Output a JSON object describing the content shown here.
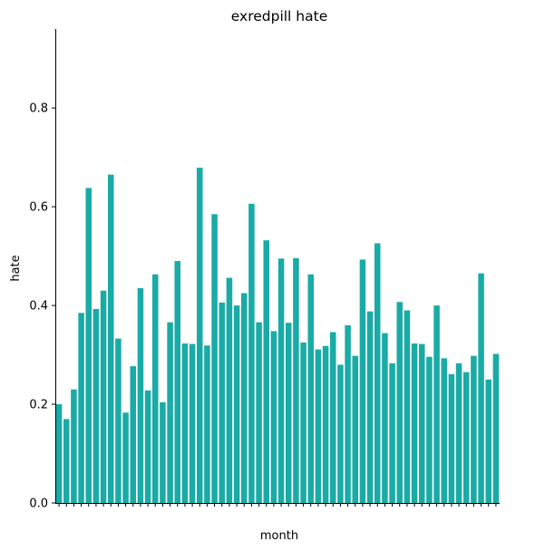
{
  "chart_data": {
    "type": "bar",
    "title": "exredpill hate",
    "xlabel": "month",
    "ylabel": "hate",
    "ylim": [
      0,
      0.96
    ],
    "yticks": [
      0.0,
      0.2,
      0.4,
      0.6,
      0.8
    ],
    "ytick_labels": [
      "0.0",
      "0.2",
      "0.4",
      "0.6",
      "0.8"
    ],
    "grid": false,
    "bar_color": "#1aaba6",
    "x_tick_note": "x tick labels are overlapping and illegible in the original",
    "values": [
      0.2,
      0.17,
      0.23,
      0.385,
      0.638,
      0.393,
      0.43,
      0.665,
      0.333,
      0.183,
      0.277,
      0.435,
      0.228,
      0.463,
      0.204,
      0.366,
      0.49,
      0.323,
      0.322,
      0.679,
      0.319,
      0.585,
      0.406,
      0.456,
      0.4,
      0.425,
      0.606,
      0.366,
      0.532,
      0.348,
      0.495,
      0.365,
      0.496,
      0.325,
      0.463,
      0.311,
      0.318,
      0.346,
      0.28,
      0.36,
      0.298,
      0.493,
      0.388,
      0.526,
      0.344,
      0.283,
      0.407,
      0.39,
      0.323,
      0.322,
      0.296,
      0.4,
      0.293,
      0.261,
      0.283,
      0.265,
      0.298,
      0.465,
      0.25,
      0.302
    ]
  }
}
